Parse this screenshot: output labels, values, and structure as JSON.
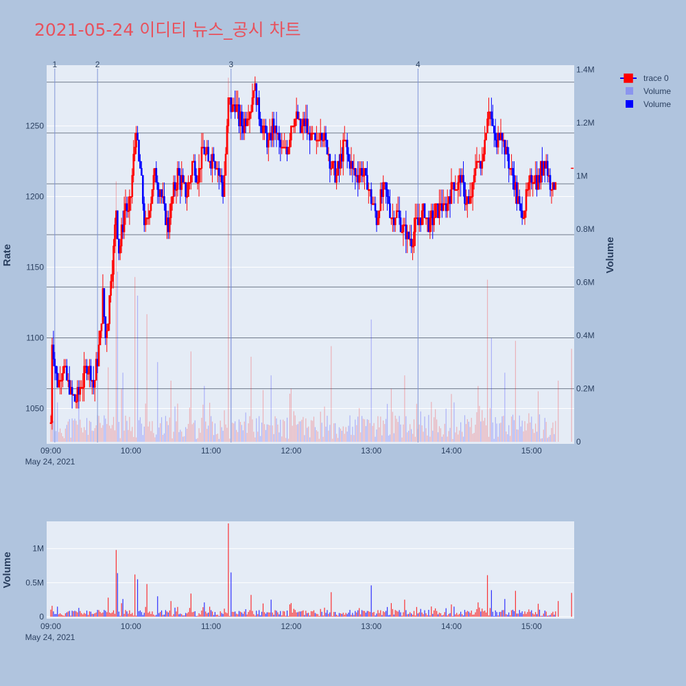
{
  "page": {
    "title": "2021-05-24 이디티 뉴스_공시 차트",
    "background": "#b0c4de",
    "plot_background": "#e5ecf6"
  },
  "legend": [
    {
      "label": "trace 0",
      "symbol": "candlestick"
    },
    {
      "label": "Volume",
      "symbol": "light-blue-square"
    },
    {
      "label": "Volume",
      "symbol": "blue-square"
    }
  ],
  "chart_data": [
    {
      "type": "candlestick",
      "ylabel": "Rate",
      "y2label": "Volume",
      "ylim": [
        1025,
        1293
      ],
      "y2lim": [
        0,
        1350000.0
      ],
      "yticks": [
        1050,
        1100,
        1150,
        1200,
        1250
      ],
      "y2ticks": [
        {
          "value": 0,
          "label": "0"
        },
        {
          "value": 200000,
          "label": "0.2M"
        },
        {
          "value": 400000,
          "label": "0.4M"
        },
        {
          "value": 600000,
          "label": "0.6M"
        },
        {
          "value": 800000,
          "label": "0.8M"
        },
        {
          "value": 1000000,
          "label": "1M"
        },
        {
          "value": 1200000,
          "label": "1.2M"
        },
        {
          "value": 1400000,
          "label": "1.4M"
        }
      ],
      "xrange": [
        "09:00",
        "15:30"
      ],
      "xticks": [
        "09:00",
        "10:00",
        "11:00",
        "12:00",
        "13:00",
        "14:00",
        "15:00"
      ],
      "xdate_label": "May 24, 2021",
      "up_color": "#ff0000",
      "down_color": "#0000ff",
      "news_markers": [
        {
          "label": "1",
          "time": "09:03"
        },
        {
          "label": "2",
          "time": "09:35"
        },
        {
          "label": "3",
          "time": "11:15"
        },
        {
          "label": "4",
          "time": "13:35"
        }
      ],
      "horizontal_levels": [
        1281,
        1245,
        1209,
        1173,
        1136,
        1100,
        1064
      ],
      "price_anchors": [
        [
          "09:00",
          1040
        ],
        [
          "09:01",
          1100
        ],
        [
          "09:03",
          1080
        ],
        [
          "09:05",
          1070
        ],
        [
          "09:08",
          1075
        ],
        [
          "09:10",
          1080
        ],
        [
          "09:12",
          1070
        ],
        [
          "09:15",
          1060
        ],
        [
          "09:18",
          1055
        ],
        [
          "09:21",
          1062
        ],
        [
          "09:24",
          1068
        ],
        [
          "09:27",
          1080
        ],
        [
          "09:30",
          1075
        ],
        [
          "09:32",
          1065
        ],
        [
          "09:35",
          1085
        ],
        [
          "09:37",
          1100
        ],
        [
          "09:39",
          1130
        ],
        [
          "09:41",
          1100
        ],
        [
          "09:43",
          1115
        ],
        [
          "09:45",
          1145
        ],
        [
          "09:47",
          1160
        ],
        [
          "09:49",
          1190
        ],
        [
          "09:51",
          1160
        ],
        [
          "09:53",
          1175
        ],
        [
          "09:56",
          1195
        ],
        [
          "09:58",
          1185
        ],
        [
          "10:00",
          1200
        ],
        [
          "10:02",
          1225
        ],
        [
          "10:04",
          1248
        ],
        [
          "10:06",
          1225
        ],
        [
          "10:08",
          1210
        ],
        [
          "10:10",
          1185
        ],
        [
          "10:12",
          1180
        ],
        [
          "10:15",
          1200
        ],
        [
          "10:18",
          1215
        ],
        [
          "10:22",
          1205
        ],
        [
          "10:25",
          1190
        ],
        [
          "10:28",
          1180
        ],
        [
          "10:31",
          1200
        ],
        [
          "10:35",
          1215
        ],
        [
          "10:38",
          1210
        ],
        [
          "10:42",
          1200
        ],
        [
          "10:46",
          1225
        ],
        [
          "10:50",
          1215
        ],
        [
          "10:54",
          1235
        ],
        [
          "10:58",
          1225
        ],
        [
          "11:02",
          1230
        ],
        [
          "11:06",
          1215
        ],
        [
          "11:09",
          1205
        ],
        [
          "11:11",
          1230
        ],
        [
          "11:13",
          1268
        ],
        [
          "11:15",
          1262
        ],
        [
          "11:18",
          1265
        ],
        [
          "11:21",
          1255
        ],
        [
          "11:24",
          1250
        ],
        [
          "11:27",
          1258
        ],
        [
          "11:30",
          1262
        ],
        [
          "11:32",
          1278
        ],
        [
          "11:34",
          1270
        ],
        [
          "11:37",
          1255
        ],
        [
          "11:40",
          1245
        ],
        [
          "11:43",
          1235
        ],
        [
          "11:46",
          1250
        ],
        [
          "11:49",
          1245
        ],
        [
          "11:52",
          1235
        ],
        [
          "11:55",
          1230
        ],
        [
          "11:58",
          1240
        ],
        [
          "12:01",
          1255
        ],
        [
          "12:04",
          1258
        ],
        [
          "12:07",
          1245
        ],
        [
          "12:10",
          1252
        ],
        [
          "12:13",
          1245
        ],
        [
          "12:16",
          1240
        ],
        [
          "12:19",
          1235
        ],
        [
          "12:22",
          1250
        ],
        [
          "12:25",
          1240
        ],
        [
          "12:28",
          1230
        ],
        [
          "12:31",
          1220
        ],
        [
          "12:34",
          1215
        ],
        [
          "12:37",
          1225
        ],
        [
          "12:40",
          1240
        ],
        [
          "12:43",
          1225
        ],
        [
          "12:46",
          1220
        ],
        [
          "12:49",
          1215
        ],
        [
          "12:52",
          1218
        ],
        [
          "12:55",
          1215
        ],
        [
          "12:58",
          1205
        ],
        [
          "13:01",
          1195
        ],
        [
          "13:04",
          1185
        ],
        [
          "13:07",
          1200
        ],
        [
          "13:10",
          1205
        ],
        [
          "13:13",
          1195
        ],
        [
          "13:16",
          1185
        ],
        [
          "13:19",
          1190
        ],
        [
          "13:22",
          1182
        ],
        [
          "13:25",
          1175
        ],
        [
          "13:28",
          1170
        ],
        [
          "13:31",
          1172
        ],
        [
          "13:34",
          1180
        ],
        [
          "13:37",
          1185
        ],
        [
          "13:40",
          1190
        ],
        [
          "13:43",
          1180
        ],
        [
          "13:46",
          1185
        ],
        [
          "13:49",
          1190
        ],
        [
          "13:52",
          1195
        ],
        [
          "13:55",
          1190
        ],
        [
          "13:58",
          1200
        ],
        [
          "14:01",
          1210
        ],
        [
          "14:04",
          1205
        ],
        [
          "14:07",
          1215
        ],
        [
          "14:10",
          1200
        ],
        [
          "14:13",
          1195
        ],
        [
          "14:16",
          1205
        ],
        [
          "14:19",
          1230
        ],
        [
          "14:22",
          1220
        ],
        [
          "14:25",
          1240
        ],
        [
          "14:28",
          1265
        ],
        [
          "14:31",
          1245
        ],
        [
          "14:34",
          1235
        ],
        [
          "14:37",
          1250
        ],
        [
          "14:40",
          1235
        ],
        [
          "14:43",
          1225
        ],
        [
          "14:46",
          1215
        ],
        [
          "14:49",
          1200
        ],
        [
          "14:52",
          1185
        ],
        [
          "14:55",
          1195
        ],
        [
          "14:58",
          1205
        ],
        [
          "15:01",
          1215
        ],
        [
          "15:04",
          1210
        ],
        [
          "15:07",
          1218
        ],
        [
          "15:10",
          1228
        ],
        [
          "15:13",
          1215
        ],
        [
          "15:16",
          1205
        ],
        [
          "15:19",
          1220
        ]
      ],
      "last_price_marker": {
        "time": "15:30",
        "value": 1220
      }
    },
    {
      "type": "bar",
      "ylabel": "Volume",
      "ylim": [
        0,
        1400000.0
      ],
      "yticks": [
        {
          "value": 0,
          "label": "0"
        },
        {
          "value": 500000,
          "label": "0.5M"
        },
        {
          "value": 1000000,
          "label": "1M"
        }
      ],
      "xrange": [
        "09:00",
        "15:30"
      ],
      "xticks": [
        "09:00",
        "10:00",
        "11:00",
        "12:00",
        "13:00",
        "14:00",
        "15:00"
      ],
      "xdate_label": "May 24, 2021",
      "up_color": "#ff0000",
      "down_color": "#0000ff",
      "volume_spikes": [
        [
          "09:01",
          160000
        ],
        [
          "09:35",
          100000
        ],
        [
          "09:43",
          280000
        ],
        [
          "09:49",
          980000
        ],
        [
          "09:50",
          640000
        ],
        [
          "09:54",
          260000
        ],
        [
          "10:03",
          620000
        ],
        [
          "10:05",
          550000
        ],
        [
          "10:12",
          480000
        ],
        [
          "10:20",
          300000
        ],
        [
          "10:30",
          230000
        ],
        [
          "10:45",
          340000
        ],
        [
          "10:55",
          210000
        ],
        [
          "11:13",
          1370000
        ],
        [
          "11:15",
          650000
        ],
        [
          "11:30",
          320000
        ],
        [
          "11:45",
          250000
        ],
        [
          "12:00",
          200000
        ],
        [
          "12:30",
          360000
        ],
        [
          "13:00",
          460000
        ],
        [
          "13:15",
          200000
        ],
        [
          "13:25",
          250000
        ],
        [
          "13:45",
          150000
        ],
        [
          "14:00",
          180000
        ],
        [
          "14:20",
          210000
        ],
        [
          "14:27",
          610000
        ],
        [
          "14:30",
          390000
        ],
        [
          "14:40",
          260000
        ],
        [
          "14:48",
          380000
        ],
        [
          "15:05",
          190000
        ],
        [
          "15:20",
          230000
        ],
        [
          "15:30",
          350000
        ]
      ]
    }
  ]
}
